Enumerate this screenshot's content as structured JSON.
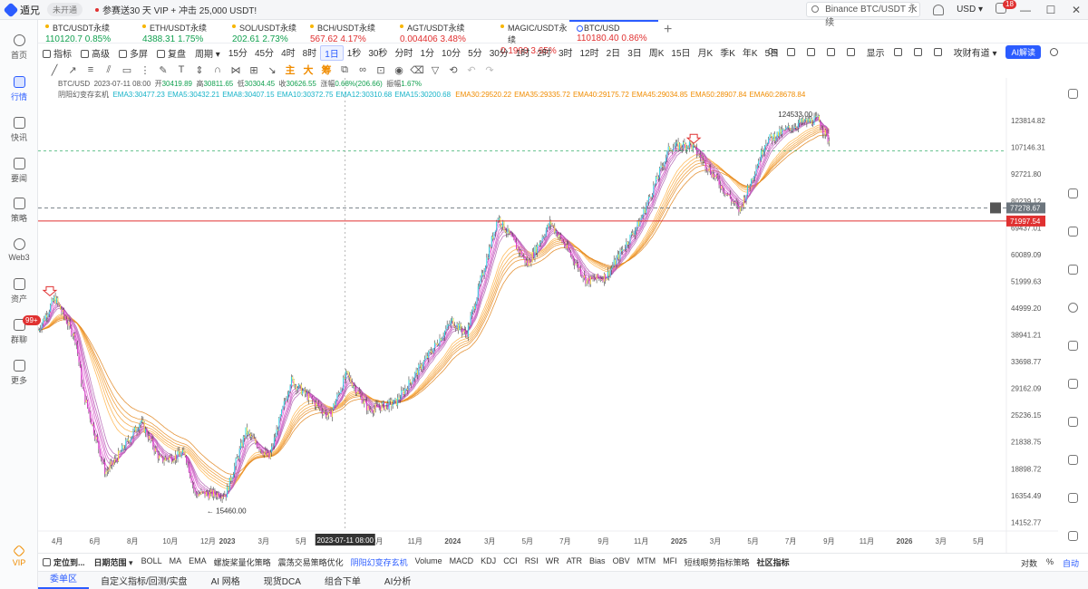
{
  "app": {
    "name": "遁兄",
    "status": "未开通",
    "promo": "参赛送30 天 VIP + 冲击 25,000 USDT!"
  },
  "topbar": {
    "search_value": "Binance BTC/USDT 永续",
    "currency": "USD",
    "mail_count": "18"
  },
  "sidebar": {
    "items": [
      {
        "label": "首页",
        "icon": "home-icon"
      },
      {
        "label": "行情",
        "icon": "market-icon"
      },
      {
        "label": "快讯",
        "icon": "news-icon"
      },
      {
        "label": "要闻",
        "icon": "article-icon"
      },
      {
        "label": "策略",
        "icon": "strategy-icon"
      },
      {
        "label": "Web3",
        "icon": "web3-icon"
      },
      {
        "label": "资产",
        "icon": "wallet-icon"
      },
      {
        "label": "群聊",
        "icon": "chat-icon"
      },
      {
        "label": "更多",
        "icon": "more-icon"
      },
      {
        "label": "VIP",
        "icon": "vip-icon"
      }
    ],
    "chat_badge": "99+"
  },
  "tickers": [
    {
      "name": "BTC/USDT永续",
      "price": "110120.7",
      "change": "0.85%",
      "dir": "up"
    },
    {
      "name": "ETH/USDT永续",
      "price": "4388.31",
      "change": "1.75%",
      "dir": "up"
    },
    {
      "name": "SOL/USDT永续",
      "price": "202.61",
      "change": "2.73%",
      "dir": "up"
    },
    {
      "name": "BCH/USDT永续",
      "price": "567.62",
      "change": "4.17%",
      "dir": "down"
    },
    {
      "name": "AGT/USDT永续",
      "price": "0.004406",
      "change": "3.48%",
      "dir": "down"
    },
    {
      "name": "MAGIC/USDT永续",
      "price": "0.1990",
      "change": "3.65%",
      "dir": "down"
    },
    {
      "name": "BTC/USD",
      "price": "110180.40",
      "change": "0.86%",
      "dir": "down"
    }
  ],
  "toolbar": {
    "indicator": "指标",
    "advanced": "高级",
    "multi": "多屏",
    "replay": "复盘",
    "period": "周期",
    "intervals": [
      "15分",
      "45分",
      "4时",
      "8时",
      "1日",
      "1秒",
      "30秒",
      "分时",
      "1分",
      "10分",
      "5分",
      "30分",
      "1时",
      "2时",
      "3时",
      "12时",
      "2日",
      "3日",
      "周K",
      "15日",
      "月K",
      "季K",
      "年K",
      "5日"
    ],
    "selected_interval": "1日",
    "right": {
      "countdown": "0s",
      "display": "显示",
      "attack": "攻财有道",
      "ai": "AI解读"
    }
  },
  "drawing_tools": {
    "main": "主",
    "big": "大",
    "chip": "筹"
  },
  "info": {
    "symbol": "BTC/USD",
    "date": "2023-07-11 08:00",
    "open_label": "开",
    "open": "30419.89",
    "high_label": "高",
    "high": "30811.65",
    "low_label": "低",
    "low": "30304.45",
    "close_label": "收",
    "close": "30626.55",
    "chg_label": "涨幅",
    "chg": "0.68%(206.66)",
    "amp_label": "振幅",
    "amp": "1.67%",
    "indicator_name": "阴阳幻变存玄机",
    "ema_short": [
      "EMA3:30477.23",
      "EMA5:30432.21",
      "EMA8:30407.15",
      "EMA10:30372.75",
      "EMA12:30310.68",
      "EMA15:30200.68"
    ],
    "ema_long": [
      "EMA30:29520.22",
      "EMA35:29335.72",
      "EMA40:29175.72",
      "EMA45:29034.85",
      "EMA50:28907.84",
      "EMA60:28678.84"
    ]
  },
  "chart_data": {
    "type": "candlestick",
    "symbol": "BTC/USD",
    "y_scale": "log",
    "ylim": [
      13500,
      140000
    ],
    "y_ticks": [
      123814.82,
      107146.31,
      92721.8,
      80239.12,
      69437.01,
      60089.09,
      51999.63,
      44999.2,
      38941.21,
      33698.77,
      29162.09,
      25236.15,
      21838.75,
      18898.72,
      16354.49,
      14152.77
    ],
    "x_ticks": [
      "4月",
      "6月",
      "8月",
      "10月",
      "12月",
      "2023",
      "3月",
      "5月",
      "7月",
      "9月",
      "11月",
      "2024",
      "3月",
      "5月",
      "7月",
      "9月",
      "11月",
      "2025",
      "3月",
      "5月",
      "7月",
      "9月",
      "11月",
      "2026",
      "3月",
      "5月"
    ],
    "x_range": [
      "2022-03-01",
      "2026-06-15"
    ],
    "price_path": [
      [
        "2022-03-01",
        40000
      ],
      [
        "2022-03-28",
        47500
      ],
      [
        "2022-05-01",
        38000
      ],
      [
        "2022-05-12",
        29000
      ],
      [
        "2022-06-18",
        18500
      ],
      [
        "2022-07-01",
        19500
      ],
      [
        "2022-08-14",
        24400
      ],
      [
        "2022-09-15",
        19800
      ],
      [
        "2022-10-25",
        20500
      ],
      [
        "2022-11-10",
        16500
      ],
      [
        "2022-12-30",
        16500
      ],
      [
        "2023-01-31",
        23100
      ],
      [
        "2023-03-10",
        20000
      ],
      [
        "2023-04-14",
        30500
      ],
      [
        "2023-06-15",
        25000
      ],
      [
        "2023-07-13",
        31500
      ],
      [
        "2023-08-18",
        26000
      ],
      [
        "2023-10-01",
        27000
      ],
      [
        "2023-12-31",
        42000
      ],
      [
        "2024-01-23",
        39000
      ],
      [
        "2024-03-14",
        73500
      ],
      [
        "2024-05-01",
        57000
      ],
      [
        "2024-06-07",
        71500
      ],
      [
        "2024-08-05",
        52000
      ],
      [
        "2024-09-06",
        53500
      ],
      [
        "2024-10-30",
        72000
      ],
      [
        "2024-12-17",
        107000
      ],
      [
        "2025-01-20",
        109000
      ],
      [
        "2025-04-09",
        76000
      ],
      [
        "2025-05-22",
        111000
      ],
      [
        "2025-07-14",
        122000
      ],
      [
        "2025-08-14",
        124533
      ],
      [
        "2025-09-02",
        110180
      ]
    ],
    "annotations": [
      {
        "text": "124533.00",
        "kind": "high"
      },
      {
        "text": "15460.00",
        "kind": "low"
      }
    ],
    "price_lines": [
      {
        "value": 77278.67,
        "label": "77278.67",
        "color": "#6c757d"
      },
      {
        "value": 71997.54,
        "label": "71997.54",
        "color": "#e03131"
      }
    ],
    "crosshair_date": "2023-07-11 08:00"
  },
  "bottom_bar": {
    "locate": "定位到...",
    "date_range": "日期范围",
    "indicators": [
      "BOLL",
      "MA",
      "EMA",
      "螺旋桨量化策略",
      "震荡交易策略优化",
      "阴阳幻变存玄机",
      "Volume",
      "MACD",
      "KDJ",
      "CCI",
      "RSI",
      "WR",
      "ATR",
      "Bias",
      "OBV",
      "MTM",
      "MFI",
      "短线眼势指标策略",
      "社区指标"
    ],
    "right": [
      "对数",
      "%",
      "自动"
    ]
  },
  "bottom_tabs": [
    "委单区",
    "自定义指标/回测/实盘",
    "AI 网格",
    "现货DCA",
    "组合下单",
    "AI分析"
  ]
}
